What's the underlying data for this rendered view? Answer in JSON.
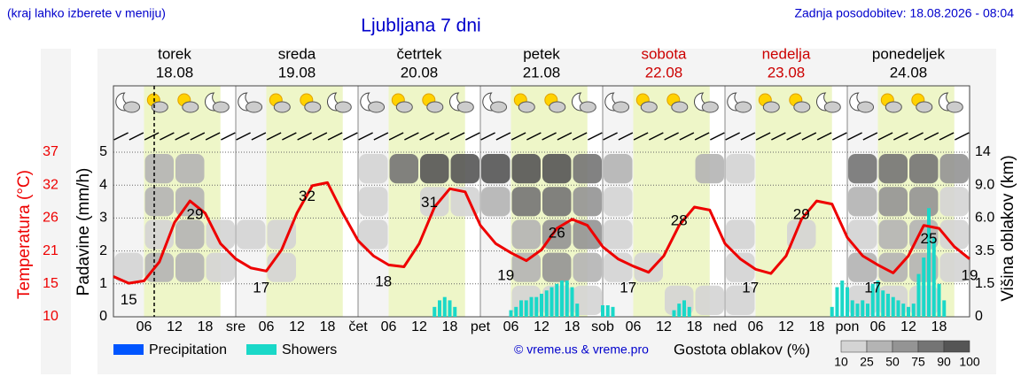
{
  "chart_data": {
    "type": "meteogram",
    "header_left": "(kraj lahko izberete v meniju)",
    "title": "Ljubljana 7 dni",
    "header_right": "Zadnja posodobitev: 18.08.2026 - 08:04",
    "days": [
      {
        "name": "torek",
        "date": "18.08",
        "color": "#000000"
      },
      {
        "name": "sreda",
        "date": "19.08",
        "color": "#000000"
      },
      {
        "name": "četrtek",
        "date": "20.08",
        "color": "#000000"
      },
      {
        "name": "petek",
        "date": "21.08",
        "color": "#000000"
      },
      {
        "name": "sobota",
        "date": "22.08",
        "color": "#cc0000"
      },
      {
        "name": "nedelja",
        "date": "23.08",
        "color": "#cc0000"
      },
      {
        "name": "ponedeljek",
        "date": "24.08",
        "color": "#000000"
      }
    ],
    "xlim": [
      0,
      168
    ],
    "xtick_labels": [
      null,
      "06",
      "12",
      "18",
      "sre",
      "06",
      "12",
      "18",
      "čet",
      "06",
      "12",
      "18",
      "pet",
      "06",
      "12",
      "18",
      "sob",
      "06",
      "12",
      "18",
      "ned",
      "06",
      "12",
      "18",
      "pon",
      "06",
      "12",
      "18"
    ],
    "ylabel": "Padavine (mm/h)",
    "ylim": [
      0,
      5
    ],
    "yticks": [
      0,
      1,
      2,
      3,
      4,
      5
    ],
    "grid": true,
    "temperature": {
      "label": "Temperatura (°C)",
      "color": "#ee0000",
      "lim": [
        10,
        37
      ],
      "ticks": [
        10,
        {
          "value": 15.4,
          "label": "15"
        },
        {
          "value": 20.8,
          "label": "21"
        },
        {
          "value": 26.2,
          "label": "26"
        },
        {
          "value": 31.6,
          "label": "32"
        },
        37
      ],
      "hours": [
        0,
        3,
        6,
        9,
        12,
        15,
        18,
        21,
        24,
        27,
        30,
        33,
        36,
        39,
        42,
        45,
        48,
        51,
        54,
        57,
        60,
        63,
        66,
        69,
        72,
        75,
        78,
        81,
        84,
        87,
        90,
        93,
        96,
        99,
        102,
        105,
        108,
        111,
        114,
        117,
        120,
        123,
        126,
        129,
        132,
        135,
        138,
        141,
        144,
        147,
        150,
        153,
        156,
        159,
        162,
        165,
        168
      ],
      "values": [
        16.6,
        15.5,
        15.9,
        19,
        25.5,
        29,
        27,
        22,
        19.5,
        18,
        17.5,
        21,
        27,
        31.5,
        32,
        27,
        22.5,
        20,
        18.5,
        18.2,
        22,
        28,
        31,
        30.5,
        25,
        22,
        20.5,
        19.2,
        21,
        24.5,
        26,
        25,
        21.5,
        19.5,
        18.3,
        17.3,
        20,
        25,
        28,
        27.5,
        22,
        19.5,
        17.8,
        17.1,
        20,
        26,
        29,
        28.5,
        23,
        20,
        18.5,
        17.2,
        20,
        25,
        24.5,
        21.5,
        19.5
      ],
      "label_hours": [
        3,
        16,
        29,
        38,
        53,
        62,
        77,
        87,
        101,
        111,
        125,
        135,
        149,
        160,
        168
      ],
      "labels": [
        15,
        29,
        17,
        32,
        18,
        31,
        19,
        26,
        17,
        28,
        17,
        29,
        17,
        25,
        19
      ]
    },
    "y2label": "Višina oblakov (km)",
    "y2lim": [
      0,
      14
    ],
    "y2ticks": [
      0,
      1.5,
      3.5,
      {
        "value": 6,
        "label": "6.0"
      },
      {
        "value": 9,
        "label": "9.0"
      },
      14
    ],
    "series": [
      {
        "name": "Precipitation",
        "color": "#0055ff",
        "hours": [],
        "values": []
      },
      {
        "name": "Showers",
        "color": "#1ad8c8",
        "hours": [
          63,
          64,
          65,
          66,
          67,
          78,
          79,
          80,
          81,
          82,
          83,
          84,
          85,
          86,
          87,
          88,
          89,
          90,
          91,
          96,
          97,
          98,
          110,
          111,
          112,
          113,
          141,
          142,
          143,
          144,
          145,
          146,
          147,
          148,
          149,
          150,
          151,
          152,
          153,
          154,
          155,
          156,
          157,
          158,
          159,
          160,
          161,
          162,
          163
        ],
        "values": [
          0.3,
          0.5,
          0.6,
          0.5,
          0.3,
          0.2,
          0.3,
          0.5,
          0.5,
          0.6,
          0.6,
          0.7,
          0.8,
          0.9,
          1.0,
          1.1,
          1.1,
          0.9,
          0.4,
          0.35,
          0.35,
          0.3,
          0.2,
          0.4,
          0.5,
          0.3,
          0.3,
          0.9,
          1.1,
          0.9,
          0.5,
          0.4,
          0.5,
          0.4,
          1.0,
          1.1,
          0.8,
          0.7,
          0.6,
          0.5,
          0.4,
          0.3,
          0.4,
          1.3,
          1.8,
          3.3,
          2.4,
          1.0,
          0.5
        ]
      }
    ],
    "copyright": "© vreme.us & vreme.pro",
    "clouds": {
      "title": "Gostota oblakov (%)",
      "legend_values": [
        10,
        25,
        50,
        75,
        90,
        100
      ],
      "colors": [
        "#d4d4d4",
        "#b4b4b4",
        "#949494",
        "#747474",
        "#555555"
      ],
      "rows": [
        [
          0,
          0,
          0,
          0,
          0,
          0,
          0,
          0,
          0,
          0,
          0,
          0,
          0,
          25,
          25,
          25,
          0,
          0,
          25,
          25,
          25,
          0,
          0,
          0,
          25,
          25,
          25,
          0
        ],
        [
          25,
          50,
          50,
          25,
          0,
          25,
          0,
          0,
          0,
          0,
          0,
          0,
          0,
          50,
          75,
          50,
          25,
          25,
          0,
          0,
          25,
          0,
          0,
          0,
          50,
          50,
          50,
          25
        ],
        [
          0,
          25,
          50,
          25,
          25,
          25,
          0,
          0,
          25,
          0,
          0,
          0,
          0,
          50,
          75,
          75,
          25,
          0,
          0,
          0,
          25,
          0,
          25,
          0,
          25,
          50,
          50,
          25
        ],
        [
          0,
          50,
          50,
          0,
          0,
          0,
          0,
          0,
          25,
          0,
          25,
          25,
          50,
          90,
          90,
          75,
          25,
          0,
          0,
          0,
          0,
          0,
          0,
          0,
          50,
          75,
          75,
          25
        ],
        [
          0,
          50,
          50,
          0,
          0,
          0,
          0,
          0,
          25,
          90,
          100,
          100,
          100,
          100,
          100,
          90,
          50,
          0,
          0,
          50,
          25,
          0,
          0,
          0,
          90,
          90,
          90,
          75
        ]
      ]
    }
  }
}
